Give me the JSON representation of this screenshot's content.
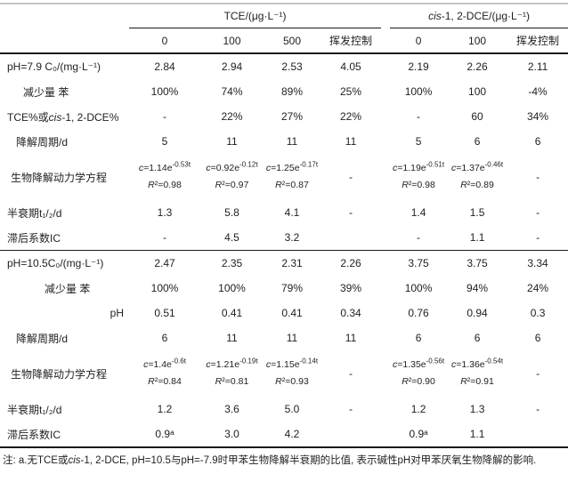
{
  "header": {
    "groups": [
      {
        "pre": "TCE/(μg·L⁻¹)",
        "italic": "",
        "post": ""
      },
      {
        "pre": "",
        "italic": "cis",
        "post": "-1, 2-DCE/(μg·L⁻¹)"
      }
    ],
    "sub_columns": [
      "0",
      "100",
      "500",
      "挥发控制",
      "0",
      "100",
      "挥发控制"
    ]
  },
  "sections": [
    {
      "rows": {
        "c0": {
          "label": "pH=7.9 C₀/(mg·L⁻¹)",
          "values": [
            "2.84",
            "2.94",
            "2.53",
            "4.05",
            "2.19",
            "2.26",
            "2.11"
          ]
        },
        "benzene": {
          "label": "减少量 苯",
          "values": [
            "100%",
            "74%",
            "89%",
            "25%",
            "100%",
            "100",
            "-4%"
          ]
        },
        "pct": {
          "label_pre": "TCE%或",
          "label_italic": "cis",
          "label_post": "-1, 2-DCE%",
          "values": [
            "-",
            "22%",
            "27%",
            "22%",
            "-",
            "60",
            "34%"
          ]
        },
        "period": {
          "label": "降解周期/d",
          "values": [
            "5",
            "11",
            "11",
            "11",
            "5",
            "6",
            "6"
          ]
        },
        "kinetics": {
          "label": "生物降解动力学方程",
          "cells": [
            {
              "eq": "c=1.14e",
              "exp": "-0.53t",
              "r2": "R²=0.98"
            },
            {
              "eq": "c=0.92e",
              "exp": "-0.12t",
              "r2": "R²=0.97"
            },
            {
              "eq": "c=1.25e",
              "exp": "-0.17t",
              "r2": "R²=0.87"
            },
            {
              "dash": "-"
            },
            {
              "eq": "c=1.19e",
              "exp": "-0.51t",
              "r2": "R²=0.98"
            },
            {
              "eq": "c=1.37e",
              "exp": "-0.46t",
              "r2": "R²=0.89"
            },
            {
              "dash": "-"
            }
          ]
        },
        "halflife": {
          "label": "半衰期t₁/₂/d",
          "values": [
            "1.3",
            "5.8",
            "4.1",
            "-",
            "1.4",
            "1.5",
            "-"
          ]
        },
        "ic": {
          "label": "滞后系数IC",
          "values": [
            "-",
            "4.5",
            "3.2",
            "",
            "-",
            "1.1",
            "-"
          ]
        }
      }
    },
    {
      "rows": {
        "c0": {
          "label": "pH=10.5C₀/(mg·L⁻¹)",
          "values": [
            "2.47",
            "2.35",
            "2.31",
            "2.26",
            "3.75",
            "3.75",
            "3.34"
          ]
        },
        "benzene": {
          "label": "减少量 苯",
          "values": [
            "100%",
            "100%",
            "79%",
            "39%",
            "100%",
            "94%",
            "24%"
          ]
        },
        "ph": {
          "label": "pH",
          "values": [
            "0.51",
            "0.41",
            "0.41",
            "0.34",
            "0.76",
            "0.94",
            "0.3"
          ]
        },
        "period": {
          "label": "降解周期/d",
          "values": [
            "6",
            "11",
            "11",
            "11",
            "6",
            "6",
            "6"
          ]
        },
        "kinetics": {
          "label": "生物降解动力学方程",
          "cells": [
            {
              "eq": "c=1.4e",
              "exp": "-0.6t",
              "r2": "R²=0.84"
            },
            {
              "eq": "c=1.21e",
              "exp": "-0.19t",
              "r2": "R²=0.81"
            },
            {
              "eq": "c=1.15e",
              "exp": "-0.14t",
              "r2": "R²=0.93"
            },
            {
              "dash": "-"
            },
            {
              "eq": "c=1.35e",
              "exp": "-0.56t",
              "r2": "R²=0.90"
            },
            {
              "eq": "c=1.36e",
              "exp": "-0.54t",
              "r2": "R²=0.91"
            },
            {
              "dash": "-"
            }
          ]
        },
        "halflife": {
          "label": "半衰期t₁/₂/d",
          "values": [
            "1.2",
            "3.6",
            "5.0",
            "-",
            "1.2",
            "1.3",
            "-"
          ]
        },
        "ic": {
          "label": "滞后系数IC",
          "values": [
            "0.9ᵃ",
            "3.0",
            "4.2",
            "",
            "0.9ᵃ",
            "1.1",
            ""
          ]
        }
      }
    }
  ],
  "footnote": {
    "pre": "注: a.无TCE或",
    "italic": "cis",
    "post": "-1, 2-DCE, pH=10.5与pH=-7.9时甲苯生物降解半衰期的比值, 表示碱性pH对甲苯厌氧生物降解的影响."
  }
}
